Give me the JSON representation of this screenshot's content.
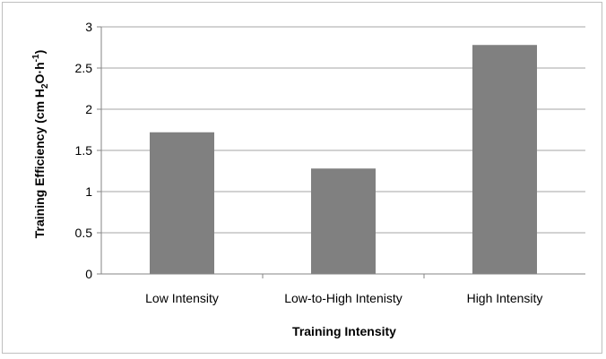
{
  "chart_data": {
    "type": "bar",
    "categories": [
      "Low Intensity",
      "Low-to-High Intenisty",
      "High Intensity"
    ],
    "values": [
      1.72,
      1.28,
      2.78
    ],
    "xlabel": "Training Intensity",
    "ylabel": {
      "prefix": "Training Efficiency (cm H",
      "sub1": "2",
      "mid": "O·h",
      "sup1": "-1",
      "suffix": ")"
    },
    "ylim": [
      0,
      3
    ],
    "yticks": [
      "0",
      "0.5",
      "1",
      "1.5",
      "2",
      "2.5",
      "3"
    ],
    "grid": true,
    "legend": "none",
    "bar_color": "#808080",
    "grid_color": "#a6a6a6"
  }
}
